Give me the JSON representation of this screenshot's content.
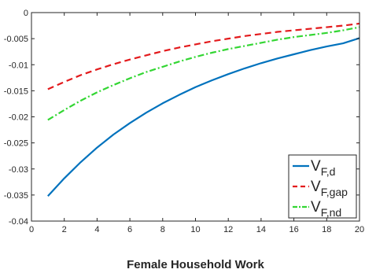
{
  "chart_data": {
    "type": "line",
    "title": "",
    "xlabel": "Female Household Work",
    "ylabel": "",
    "xlim": [
      0,
      20
    ],
    "ylim": [
      -0.04,
      0
    ],
    "x_ticks": [
      "0",
      "2",
      "4",
      "6",
      "8",
      "10",
      "12",
      "14",
      "16",
      "18",
      "20"
    ],
    "y_ticks": [
      "-0.04",
      "-0.035",
      "-0.03",
      "-0.025",
      "-0.02",
      "-0.015",
      "-0.01",
      "-0.005",
      "0"
    ],
    "grid": false,
    "legend_position": "bottom-right",
    "x": [
      1,
      2,
      3,
      4,
      5,
      6,
      7,
      8,
      9,
      10,
      11,
      12,
      13,
      14,
      15,
      16,
      17,
      18,
      19,
      20
    ],
    "series": [
      {
        "name_main": "V",
        "name_sub": "F,d",
        "color": "#0072BD",
        "dash": "solid",
        "values": [
          -0.0352,
          -0.0318,
          -0.0287,
          -0.0259,
          -0.0234,
          -0.0212,
          -0.0192,
          -0.0174,
          -0.0158,
          -0.0143,
          -0.013,
          -0.0118,
          -0.0107,
          -0.0097,
          -0.0088,
          -0.008,
          -0.0072,
          -0.0065,
          -0.0059,
          -0.0049
        ]
      },
      {
        "name_main": "V",
        "name_sub": "F,gap",
        "color": "#E31A1C",
        "dash": "dashed",
        "values": [
          -0.0147,
          -0.0133,
          -0.012,
          -0.0109,
          -0.0099,
          -0.009,
          -0.0082,
          -0.0074,
          -0.0067,
          -0.0061,
          -0.0055,
          -0.005,
          -0.0045,
          -0.0041,
          -0.0037,
          -0.0034,
          -0.0031,
          -0.0028,
          -0.0025,
          -0.0021
        ]
      },
      {
        "name_main": "V",
        "name_sub": "F,nd",
        "color": "#33D633",
        "dash": "dashdot",
        "values": [
          -0.0206,
          -0.0187,
          -0.0169,
          -0.0153,
          -0.0139,
          -0.0126,
          -0.0114,
          -0.0104,
          -0.0094,
          -0.0085,
          -0.0077,
          -0.007,
          -0.0064,
          -0.0058,
          -0.0052,
          -0.0047,
          -0.0043,
          -0.0039,
          -0.0034,
          -0.0028
        ]
      }
    ]
  }
}
